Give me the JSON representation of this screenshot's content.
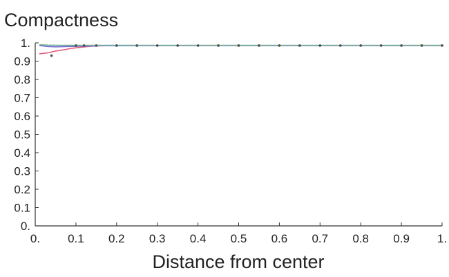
{
  "chart_data": {
    "type": "line",
    "title": "",
    "ylabel": "Compactness",
    "xlabel": "Distance from center",
    "xlim": [
      0,
      1
    ],
    "ylim": [
      0,
      1
    ],
    "x_ticks": [
      "0.",
      "0.1",
      "0.2",
      "0.3",
      "0.4",
      "0.5",
      "0.6",
      "0.7",
      "0.8",
      "0.9",
      "1."
    ],
    "y_ticks": [
      "0.",
      "0.1",
      "0.2",
      "0.3",
      "0.4",
      "0.5",
      "0.6",
      "0.7",
      "0.8",
      "0.9",
      "1."
    ],
    "grid": false,
    "legend": "none",
    "series": [
      {
        "color": "#e05a7a",
        "x": [
          0.01,
          0.03,
          0.05,
          0.07,
          0.09,
          0.11,
          0.13,
          0.15,
          0.2,
          0.25,
          0.3,
          0.4,
          0.5,
          0.6,
          0.7,
          0.8,
          0.9,
          1.0
        ],
        "values": [
          0.94,
          0.945,
          0.955,
          0.962,
          0.97,
          0.975,
          0.98,
          0.983,
          0.985,
          0.985,
          0.985,
          0.985,
          0.985,
          0.985,
          0.985,
          0.985,
          0.985,
          0.985
        ]
      },
      {
        "color": "#7a6ad0",
        "x": [
          0.01,
          0.03,
          0.05,
          0.08,
          0.12,
          0.16,
          0.2,
          0.3,
          0.4,
          0.5,
          0.6,
          0.7,
          0.8,
          0.9,
          1.0
        ],
        "values": [
          0.985,
          0.98,
          0.978,
          0.98,
          0.982,
          0.984,
          0.984,
          0.985,
          0.985,
          0.985,
          0.985,
          0.985,
          0.985,
          0.985,
          0.985
        ]
      },
      {
        "color": "#5aa7cf",
        "x": [
          0.01,
          0.03,
          0.06,
          0.1,
          0.15,
          0.2,
          0.3,
          0.4,
          0.5,
          0.6,
          0.7,
          0.8,
          0.9,
          1.0
        ],
        "values": [
          0.99,
          0.987,
          0.986,
          0.986,
          0.986,
          0.986,
          0.986,
          0.986,
          0.986,
          0.986,
          0.986,
          0.986,
          0.986,
          0.986
        ]
      },
      {
        "color": "#9fc85a",
        "style": "dotted",
        "x": [
          0.01,
          0.05,
          0.1,
          0.15,
          0.2,
          0.3,
          0.4,
          0.5,
          0.6,
          0.7,
          0.8,
          0.9,
          1.0
        ],
        "values": [
          0.99,
          0.988,
          0.987,
          0.987,
          0.987,
          0.987,
          0.987,
          0.987,
          0.987,
          0.987,
          0.987,
          0.987,
          0.987
        ]
      },
      {
        "color": "#4d4d4d",
        "marker": "dot",
        "x": [
          0.04,
          0.1,
          0.12,
          0.15,
          0.2,
          0.25,
          0.3,
          0.35,
          0.4,
          0.45,
          0.5,
          0.55,
          0.6,
          0.65,
          0.7,
          0.75,
          0.8,
          0.85,
          0.9,
          0.95,
          1.0
        ],
        "values": [
          0.93,
          0.985,
          0.985,
          0.985,
          0.985,
          0.985,
          0.985,
          0.985,
          0.985,
          0.985,
          0.985,
          0.985,
          0.985,
          0.985,
          0.985,
          0.985,
          0.985,
          0.985,
          0.985,
          0.985,
          0.985
        ]
      }
    ]
  }
}
